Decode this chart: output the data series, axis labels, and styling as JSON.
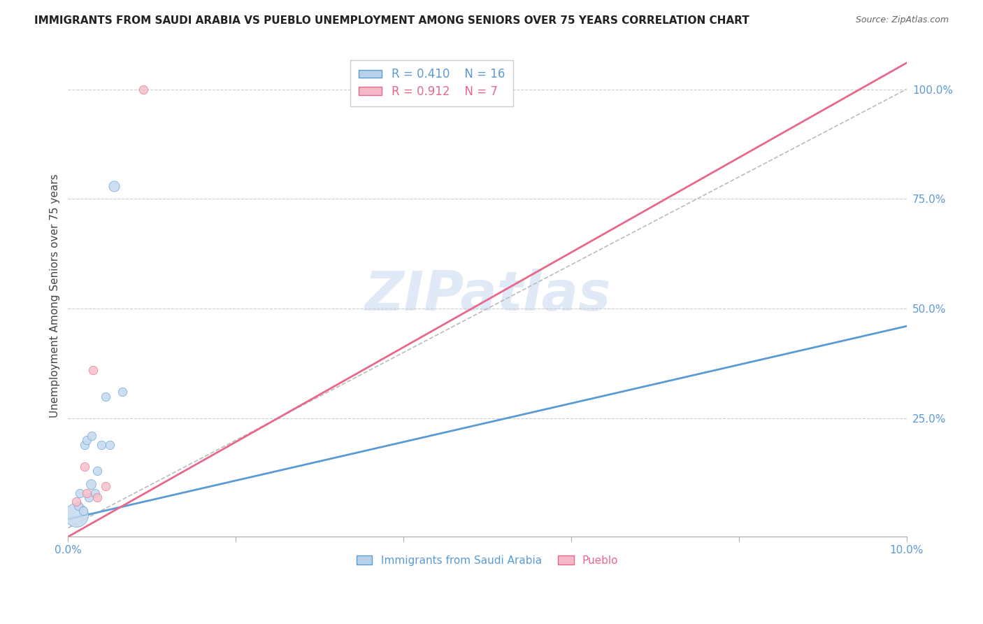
{
  "title": "IMMIGRANTS FROM SAUDI ARABIA VS PUEBLO UNEMPLOYMENT AMONG SENIORS OVER 75 YEARS CORRELATION CHART",
  "source": "Source: ZipAtlas.com",
  "ylabel": "Unemployment Among Seniors over 75 years",
  "xlim": [
    0.0,
    10.0
  ],
  "ylim": [
    -0.02,
    1.08
  ],
  "ytick_labels": [
    "25.0%",
    "50.0%",
    "75.0%",
    "100.0%"
  ],
  "ytick_values": [
    0.25,
    0.5,
    0.75,
    1.0
  ],
  "xtick_positions": [
    0.0,
    2.0,
    4.0,
    6.0,
    8.0,
    10.0
  ],
  "xtick_labels": [
    "0.0%",
    "",
    "",
    "",
    "",
    "10.0%"
  ],
  "legend1_R": "0.410",
  "legend1_N": "16",
  "legend2_R": "0.912",
  "legend2_N": "7",
  "legend1_facecolor": "#b8d0e8",
  "legend2_facecolor": "#f5b8c8",
  "blue_color": "#5b9bd5",
  "pink_color": "#e8688a",
  "dot_blue_face": "#c5d9ee",
  "dot_pink_face": "#f5c0cc",
  "watermark": "ZIPatlas",
  "saudi_points": [
    [
      0.1,
      0.03
    ],
    [
      0.12,
      0.05
    ],
    [
      0.14,
      0.08
    ],
    [
      0.18,
      0.04
    ],
    [
      0.2,
      0.19
    ],
    [
      0.22,
      0.2
    ],
    [
      0.25,
      0.07
    ],
    [
      0.27,
      0.1
    ],
    [
      0.28,
      0.21
    ],
    [
      0.32,
      0.08
    ],
    [
      0.35,
      0.13
    ],
    [
      0.4,
      0.19
    ],
    [
      0.45,
      0.3
    ],
    [
      0.5,
      0.19
    ],
    [
      0.55,
      0.78
    ],
    [
      0.65,
      0.31
    ]
  ],
  "saudi_sizes": [
    600,
    80,
    80,
    80,
    80,
    80,
    80,
    100,
    80,
    80,
    80,
    80,
    80,
    80,
    120,
    80
  ],
  "pueblo_points": [
    [
      0.1,
      0.06
    ],
    [
      0.2,
      0.14
    ],
    [
      0.22,
      0.08
    ],
    [
      0.3,
      0.36
    ],
    [
      0.35,
      0.07
    ],
    [
      0.45,
      0.095
    ],
    [
      0.9,
      1.0
    ]
  ],
  "pueblo_sizes": [
    80,
    80,
    80,
    80,
    80,
    80,
    80
  ],
  "blue_line_x": [
    0.0,
    10.0
  ],
  "blue_line_y": [
    0.02,
    0.46
  ],
  "pink_line_x": [
    0.0,
    10.0
  ],
  "pink_line_y": [
    -0.02,
    1.06
  ],
  "dashed_line_x": [
    0.0,
    10.0
  ],
  "dashed_line_y": [
    0.0,
    1.0
  ]
}
